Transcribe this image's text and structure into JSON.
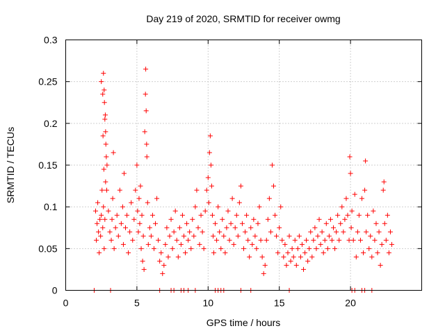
{
  "chart_data": {
    "type": "scatter",
    "title": "Day 219 of 2020, SRMTID for receiver owmg",
    "xlabel": "GPS time / hours",
    "ylabel": "SRMTID / TECUs",
    "xlim": [
      0,
      25
    ],
    "ylim": [
      0,
      0.3
    ],
    "xticks": [
      0,
      5,
      10,
      15,
      20
    ],
    "xtick_labels": [
      "0",
      "5",
      "10",
      "15",
      "20"
    ],
    "yticks": [
      0,
      0.05,
      0.1,
      0.15,
      0.2,
      0.25,
      0.3
    ],
    "ytick_labels": [
      "0",
      "0.05",
      "0.1",
      "0.15",
      "0.2",
      "0.25",
      "0.3"
    ],
    "grid": true,
    "marker": "+",
    "color": "#ff0000",
    "series": [
      {
        "name": "SRMTID",
        "points": [
          [
            2.1,
            0.095
          ],
          [
            2.15,
            0.06
          ],
          [
            2.2,
            0.08
          ],
          [
            2.25,
            0.105
          ],
          [
            2.3,
            0.07
          ],
          [
            2.35,
            0.045
          ],
          [
            2.4,
            0.085
          ],
          [
            2.45,
            0.065
          ],
          [
            2.5,
            0.09
          ],
          [
            2.55,
            0.12
          ],
          [
            2.6,
            0.075
          ],
          [
            2.65,
            0.1
          ],
          [
            2.7,
            0.05
          ],
          [
            2.75,
            0.085
          ],
          [
            2.8,
            0.13
          ],
          [
            2.5,
            0.25
          ],
          [
            2.6,
            0.235
          ],
          [
            2.65,
            0.26
          ],
          [
            2.7,
            0.24
          ],
          [
            2.72,
            0.225
          ],
          [
            2.75,
            0.205
          ],
          [
            2.8,
            0.19
          ],
          [
            2.82,
            0.175
          ],
          [
            2.85,
            0.16
          ],
          [
            2.9,
            0.15
          ],
          [
            2.62,
            0.185
          ],
          [
            2.68,
            0.145
          ],
          [
            2.78,
            0.21
          ],
          [
            2.88,
            0.12
          ],
          [
            3.0,
            0.095
          ],
          [
            3.1,
            0.07
          ],
          [
            3.2,
            0.06
          ],
          [
            3.25,
            0.085
          ],
          [
            3.3,
            0.11
          ],
          [
            3.35,
            0.165
          ],
          [
            3.4,
            0.05
          ],
          [
            3.5,
            0.075
          ],
          [
            3.6,
            0.09
          ],
          [
            3.7,
            0.065
          ],
          [
            3.8,
            0.12
          ],
          [
            3.9,
            0.08
          ],
          [
            4.0,
            0.1
          ],
          [
            4.05,
            0.055
          ],
          [
            4.1,
            0.14
          ],
          [
            4.2,
            0.075
          ],
          [
            4.3,
            0.09
          ],
          [
            4.4,
            0.045
          ],
          [
            4.5,
            0.07
          ],
          [
            4.6,
            0.105
          ],
          [
            4.7,
            0.06
          ],
          [
            4.8,
            0.085
          ],
          [
            4.9,
            0.12
          ],
          [
            5.0,
            0.15
          ],
          [
            5.05,
            0.095
          ],
          [
            5.1,
            0.07
          ],
          [
            5.15,
            0.11
          ],
          [
            5.2,
            0.08
          ],
          [
            5.25,
            0.125
          ],
          [
            5.3,
            0.05
          ],
          [
            5.35,
            0.09
          ],
          [
            5.4,
            0.035
          ],
          [
            5.45,
            0.065
          ],
          [
            5.5,
            0.025
          ],
          [
            5.55,
            0.19
          ],
          [
            5.6,
            0.235
          ],
          [
            5.62,
            0.265
          ],
          [
            5.65,
            0.215
          ],
          [
            5.68,
            0.175
          ],
          [
            5.7,
            0.16
          ],
          [
            5.75,
            0.105
          ],
          [
            5.8,
            0.055
          ],
          [
            5.9,
            0.075
          ],
          [
            6.0,
            0.065
          ],
          [
            6.1,
            0.09
          ],
          [
            6.2,
            0.05
          ],
          [
            6.3,
            0.08
          ],
          [
            6.4,
            0.11
          ],
          [
            6.5,
            0.06
          ],
          [
            6.6,
            0.035
          ],
          [
            6.7,
            0.045
          ],
          [
            6.8,
            0.02
          ],
          [
            6.9,
            0.03
          ],
          [
            7.0,
            0.055
          ],
          [
            7.1,
            0.075
          ],
          [
            7.2,
            0.04
          ],
          [
            7.3,
            0.065
          ],
          [
            7.4,
            0.085
          ],
          [
            7.5,
            0.05
          ],
          [
            7.6,
            0.07
          ],
          [
            7.7,
            0.095
          ],
          [
            7.8,
            0.06
          ],
          [
            7.9,
            0.04
          ],
          [
            8.0,
            0.075
          ],
          [
            8.1,
            0.055
          ],
          [
            8.2,
            0.09
          ],
          [
            8.3,
            0.065
          ],
          [
            8.4,
            0.045
          ],
          [
            8.5,
            0.08
          ],
          [
            8.6,
            0.06
          ],
          [
            8.7,
            0.07
          ],
          [
            8.8,
            0.05
          ],
          [
            8.9,
            0.085
          ],
          [
            9.0,
            0.065
          ],
          [
            9.1,
            0.1
          ],
          [
            9.2,
            0.12
          ],
          [
            9.3,
            0.075
          ],
          [
            9.4,
            0.055
          ],
          [
            9.5,
            0.09
          ],
          [
            9.6,
            0.07
          ],
          [
            9.7,
            0.05
          ],
          [
            9.8,
            0.095
          ],
          [
            9.9,
            0.12
          ],
          [
            10.0,
            0.135
          ],
          [
            10.05,
            0.105
          ],
          [
            10.1,
            0.165
          ],
          [
            10.15,
            0.185
          ],
          [
            10.2,
            0.15
          ],
          [
            10.25,
            0.125
          ],
          [
            10.3,
            0.09
          ],
          [
            10.35,
            0.065
          ],
          [
            10.4,
            0.045
          ],
          [
            10.5,
            0.08
          ],
          [
            10.6,
            0.06
          ],
          [
            10.7,
            0.1
          ],
          [
            10.8,
            0.07
          ],
          [
            10.9,
            0.05
          ],
          [
            11.0,
            0.085
          ],
          [
            11.1,
            0.065
          ],
          [
            11.2,
            0.045
          ],
          [
            11.3,
            0.075
          ],
          [
            11.4,
            0.095
          ],
          [
            11.5,
            0.06
          ],
          [
            11.6,
            0.08
          ],
          [
            11.7,
            0.11
          ],
          [
            11.8,
            0.055
          ],
          [
            11.9,
            0.075
          ],
          [
            12.0,
            0.09
          ],
          [
            12.1,
            0.065
          ],
          [
            12.2,
            0.105
          ],
          [
            12.3,
            0.125
          ],
          [
            12.4,
            0.08
          ],
          [
            12.5,
            0.05
          ],
          [
            12.6,
            0.07
          ],
          [
            12.7,
            0.09
          ],
          [
            12.8,
            0.06
          ],
          [
            12.9,
            0.04
          ],
          [
            13.0,
            0.075
          ],
          [
            13.1,
            0.055
          ],
          [
            13.2,
            0.085
          ],
          [
            13.3,
            0.065
          ],
          [
            13.4,
            0.05
          ],
          [
            13.5,
            0.08
          ],
          [
            13.6,
            0.1
          ],
          [
            13.7,
            0.06
          ],
          [
            13.8,
            0.04
          ],
          [
            13.9,
            0.02
          ],
          [
            14.0,
            0.03
          ],
          [
            14.1,
            0.06
          ],
          [
            14.2,
            0.085
          ],
          [
            14.3,
            0.11
          ],
          [
            14.4,
            0.07
          ],
          [
            14.5,
            0.15
          ],
          [
            14.6,
            0.125
          ],
          [
            14.7,
            0.09
          ],
          [
            14.8,
            0.065
          ],
          [
            14.9,
            0.045
          ],
          [
            15.0,
            0.075
          ],
          [
            15.1,
            0.1
          ],
          [
            15.2,
            0.06
          ],
          [
            15.3,
            0.04
          ],
          [
            15.4,
            0.055
          ],
          [
            15.5,
            0.03
          ],
          [
            15.6,
            0.045
          ],
          [
            15.7,
            0.065
          ],
          [
            15.8,
            0.035
          ],
          [
            15.9,
            0.05
          ],
          [
            16.0,
            0.04
          ],
          [
            16.1,
            0.06
          ],
          [
            16.2,
            0.03
          ],
          [
            16.3,
            0.05
          ],
          [
            16.4,
            0.065
          ],
          [
            16.5,
            0.04
          ],
          [
            16.6,
            0.055
          ],
          [
            16.7,
            0.025
          ],
          [
            16.8,
            0.045
          ],
          [
            16.9,
            0.06
          ],
          [
            17.0,
            0.035
          ],
          [
            17.1,
            0.05
          ],
          [
            17.2,
            0.07
          ],
          [
            17.3,
            0.04
          ],
          [
            17.4,
            0.06
          ],
          [
            17.5,
            0.075
          ],
          [
            17.6,
            0.05
          ],
          [
            17.7,
            0.065
          ],
          [
            17.8,
            0.085
          ],
          [
            17.9,
            0.055
          ],
          [
            18.0,
            0.07
          ],
          [
            18.1,
            0.045
          ],
          [
            18.2,
            0.06
          ],
          [
            18.3,
            0.08
          ],
          [
            18.4,
            0.05
          ],
          [
            18.5,
            0.065
          ],
          [
            18.6,
            0.085
          ],
          [
            18.7,
            0.06
          ],
          [
            18.8,
            0.075
          ],
          [
            18.9,
            0.05
          ],
          [
            19.0,
            0.07
          ],
          [
            19.1,
            0.09
          ],
          [
            19.2,
            0.06
          ],
          [
            19.3,
            0.08
          ],
          [
            19.4,
            0.1
          ],
          [
            19.5,
            0.07
          ],
          [
            19.6,
            0.085
          ],
          [
            19.7,
            0.11
          ],
          [
            19.8,
            0.09
          ],
          [
            19.9,
            0.06
          ],
          [
            19.95,
            0.16
          ],
          [
            20.0,
            0.14
          ],
          [
            20.05,
            0.075
          ],
          [
            20.1,
            0.095
          ],
          [
            20.2,
            0.06
          ],
          [
            20.3,
            0.115
          ],
          [
            20.4,
            0.04
          ],
          [
            20.5,
            0.07
          ],
          [
            20.6,
            0.09
          ],
          [
            20.7,
            0.06
          ],
          [
            20.8,
            0.11
          ],
          [
            20.9,
            0.045
          ],
          [
            21.0,
            0.12
          ],
          [
            21.05,
            0.155
          ],
          [
            21.1,
            0.07
          ],
          [
            21.2,
            0.09
          ],
          [
            21.3,
            0.05
          ],
          [
            21.4,
            0.065
          ],
          [
            21.5,
            0.04
          ],
          [
            21.6,
            0.095
          ],
          [
            21.7,
            0.06
          ],
          [
            21.8,
            0.08
          ],
          [
            21.9,
            0.045
          ],
          [
            22.0,
            0.07
          ],
          [
            22.1,
            0.03
          ],
          [
            22.2,
            0.055
          ],
          [
            22.3,
            0.12
          ],
          [
            22.35,
            0.13
          ],
          [
            22.4,
            0.08
          ],
          [
            22.5,
            0.06
          ],
          [
            22.6,
            0.09
          ],
          [
            22.7,
            0.045
          ],
          [
            22.8,
            0.07
          ],
          [
            22.9,
            0.055
          ],
          [
            2.0,
            0
          ],
          [
            3.15,
            0
          ],
          [
            6.6,
            0
          ],
          [
            7.4,
            0
          ],
          [
            7.6,
            0
          ],
          [
            8.1,
            0
          ],
          [
            8.3,
            0
          ],
          [
            8.6,
            0
          ],
          [
            9.1,
            0
          ],
          [
            10.5,
            0
          ],
          [
            10.7,
            0
          ],
          [
            10.9,
            0
          ],
          [
            11.1,
            0
          ],
          [
            12.3,
            0
          ],
          [
            13.0,
            0
          ],
          [
            15.7,
            0
          ],
          [
            20.1,
            0
          ],
          [
            20.3,
            0
          ],
          [
            20.8,
            0
          ],
          [
            21.0,
            0
          ],
          [
            21.5,
            0
          ]
        ]
      }
    ]
  }
}
